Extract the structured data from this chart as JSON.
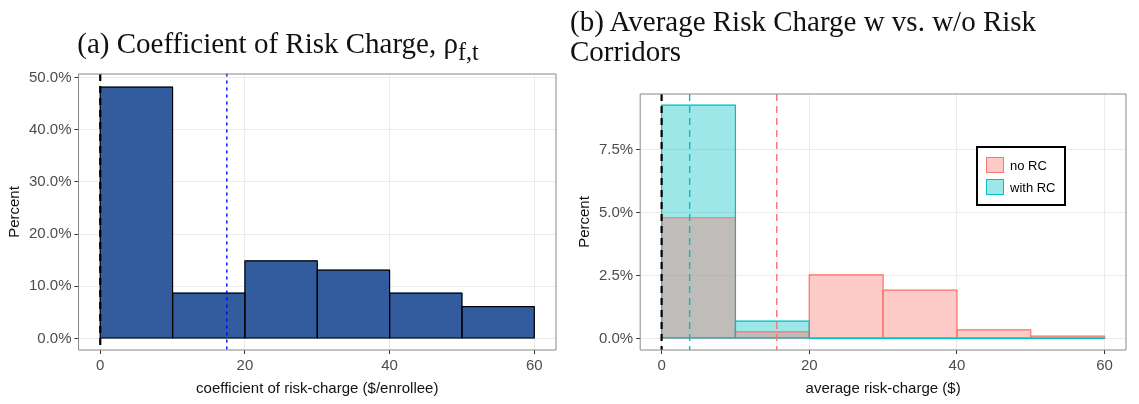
{
  "chart_data": [
    {
      "type": "histogram",
      "title": "(a) Coefficient of Risk Charge, ρ$_{f,t}$",
      "xlabel": "coefficient of risk-charge ($/enrollee)",
      "ylabel": "Percent",
      "bins": [
        0,
        10,
        20,
        30,
        40,
        50,
        60
      ],
      "series": [
        {
          "color": "#335c9e",
          "values": [
            48.2,
            8.7,
            14.9,
            13.1,
            8.7,
            6.1
          ]
        }
      ],
      "xlim": [
        -3,
        63
      ],
      "xticks": [
        0,
        20,
        40,
        60
      ],
      "ylim": [
        -2.2,
        50.7
      ],
      "yticks": [
        {
          "value": 0,
          "label": "0.0%"
        },
        {
          "value": 10,
          "label": "10.0%"
        },
        {
          "value": 20,
          "label": "20.0%"
        },
        {
          "value": 30,
          "label": "30.0%"
        },
        {
          "value": 40,
          "label": "40.0%"
        },
        {
          "value": 50,
          "label": "50.0%"
        }
      ],
      "ref_lines": [
        {
          "axis": "x",
          "value": 0,
          "color": "#000000",
          "line_style": "dashed"
        },
        {
          "axis": "x",
          "value": 17.5,
          "color": "#0000ff",
          "line_style": "dotted"
        }
      ],
      "grid": true,
      "legend": false
    },
    {
      "type": "histogram",
      "title": "(b) Average Risk Charge w vs.  w/o Risk Corridors",
      "xlabel": "average risk-charge ($)",
      "ylabel": "Percent",
      "bins": [
        0,
        10,
        20,
        30,
        40,
        50,
        60
      ],
      "series": [
        {
          "name": "no RC",
          "color": "#f8766d",
          "values": [
            4.8,
            0.26,
            2.53,
            1.92,
            0.34,
            0.09
          ]
        },
        {
          "name": "with RC",
          "color": "#00bfc4",
          "values": [
            9.28,
            0.69,
            0,
            0,
            0,
            0
          ]
        }
      ],
      "xlim": [
        -2.9,
        62.9
      ],
      "xticks": [
        0,
        20,
        40,
        60
      ],
      "ylim": [
        -0.46,
        9.72
      ],
      "yticks": [
        {
          "value": 0,
          "label": "0.0%"
        },
        {
          "value": 2.5,
          "label": "2.5%"
        },
        {
          "value": 5,
          "label": "5.0%"
        },
        {
          "value": 7.5,
          "label": "7.5%"
        }
      ],
      "ref_lines": [
        {
          "axis": "x",
          "value": 0,
          "color": "#000000",
          "line_style": "dashed"
        },
        {
          "axis": "x",
          "value": 3.8,
          "color": "#00bfc4",
          "line_style": "dashed"
        },
        {
          "axis": "x",
          "value": 15.6,
          "color": "#f8766d",
          "line_style": "dashed"
        }
      ],
      "grid": true,
      "legend": "top right"
    }
  ]
}
